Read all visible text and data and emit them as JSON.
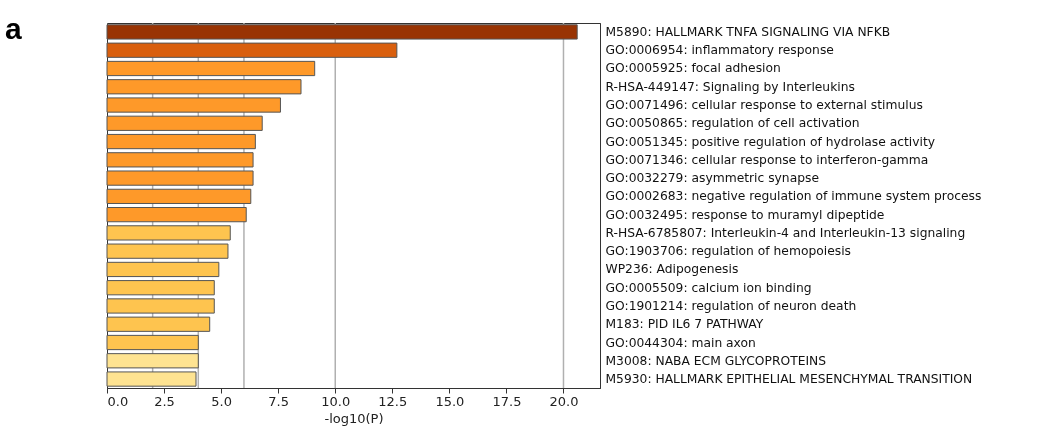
{
  "chart_data": {
    "type": "bar",
    "orientation": "horizontal",
    "xlabel": "-log10(P)",
    "annotations": [
      "a"
    ],
    "categories": [
      "M5890: HALLMARK TNFA SIGNALING VIA NFKB",
      "GO:0006954: inflammatory response",
      "GO:0005925: focal adhesion",
      "R-HSA-449147: Signaling by Interleukins",
      "GO:0071496: cellular response to external stimulus",
      "GO:0050865: regulation of cell activation",
      "GO:0051345: positive regulation of hydrolase activity",
      "GO:0071346: cellular response to interferon-gamma",
      "GO:0032279: asymmetric synapse",
      "GO:0002683: negative regulation of immune system process",
      "GO:0032495: response to muramyl dipeptide",
      "R-HSA-6785807: Interleukin-4 and Interleukin-13 signaling",
      "GO:1903706: regulation of hemopoiesis",
      "WP236: Adipogenesis",
      "GO:0005509: calcium ion binding",
      "GO:1901214: regulation of neuron death",
      "M183: PID IL6 7 PATHWAY",
      "GO:0044304: main axon",
      "M3008: NABA ECM GLYCOPROTEINS",
      "M5930: HALLMARK EPITHELIAL MESENCHYMAL TRANSITION"
    ],
    "values": [
      20.6,
      12.7,
      9.1,
      8.5,
      7.6,
      6.8,
      6.5,
      6.4,
      6.4,
      6.3,
      6.1,
      5.4,
      5.3,
      4.9,
      4.7,
      4.7,
      4.5,
      4.0,
      4.0,
      3.9
    ],
    "colors": [
      "#993404",
      "#d95f0e",
      "#fe9929",
      "#fe9929",
      "#fe9929",
      "#fe9929",
      "#fe9929",
      "#fe9929",
      "#fe9929",
      "#fe9929",
      "#fe9929",
      "#fec44f",
      "#fec44f",
      "#fec44f",
      "#fec44f",
      "#fec44f",
      "#fec44f",
      "#fec44f",
      "#fee391",
      "#fee391"
    ],
    "xlim": [
      0,
      21.6
    ],
    "xticks": [
      {
        "value": 0,
        "label": "0.0"
      },
      {
        "value": 2.5,
        "label": "2.5"
      },
      {
        "value": 5,
        "label": "5.0"
      },
      {
        "value": 7.5,
        "label": "7.5"
      },
      {
        "value": 10,
        "label": "10.0"
      },
      {
        "value": 12.5,
        "label": "12.5"
      },
      {
        "value": 15,
        "label": "15.0"
      },
      {
        "value": 17.5,
        "label": "17.5"
      },
      {
        "value": 20,
        "label": "20.0"
      }
    ],
    "ref_lines": [
      {
        "axis": "x",
        "value": 2,
        "color": "#b0b0b0"
      },
      {
        "axis": "x",
        "value": 4,
        "color": "#b0b0b0"
      },
      {
        "axis": "x",
        "value": 6,
        "color": "#b0b0b0"
      },
      {
        "axis": "x",
        "value": 10,
        "color": "#b0b0b0"
      },
      {
        "axis": "x",
        "value": 20,
        "color": "#b0b0b0"
      }
    ],
    "grid": false
  }
}
